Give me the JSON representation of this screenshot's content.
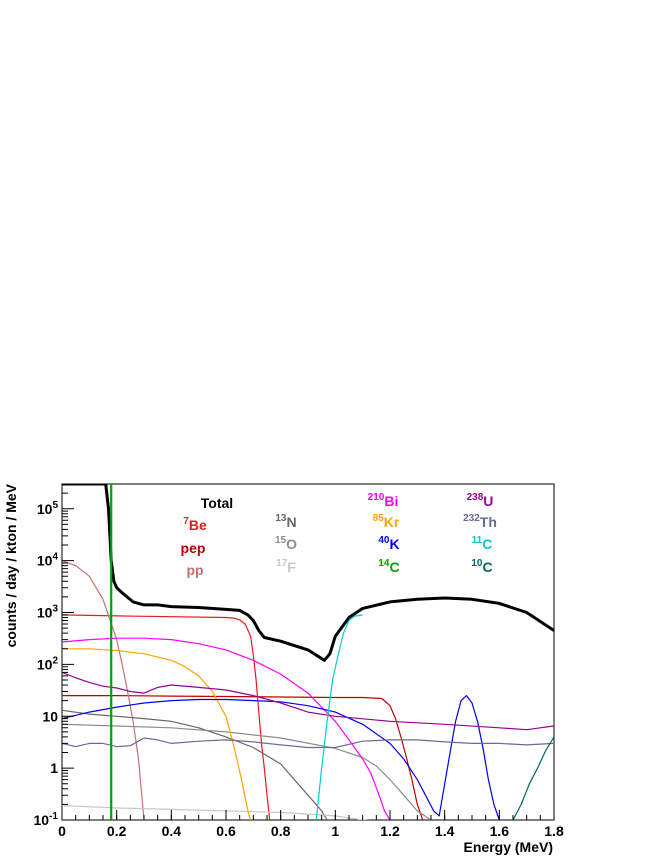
{
  "chart_data": {
    "type": "line",
    "title": "",
    "xlabel": "Energy (MeV)",
    "ylabel": "counts / day / kton / MeV",
    "xlim": [
      0,
      1.8
    ],
    "ylim": [
      0.1,
      300000
    ],
    "yscale": "log",
    "grid": false,
    "legend_placement": "top, four columns",
    "x_ticks": [
      "0",
      "0.2",
      "0.4",
      "0.6",
      "0.8",
      "1",
      "1.2",
      "1.4",
      "1.6",
      "1.8"
    ],
    "y_ticks": [
      {
        "base": "10",
        "exp": "-1"
      },
      {
        "base": "1",
        "exp": ""
      },
      {
        "base": "10",
        "exp": ""
      },
      {
        "base": "10",
        "exp": "2"
      },
      {
        "base": "10",
        "exp": "3"
      },
      {
        "base": "10",
        "exp": "4"
      },
      {
        "base": "10",
        "exp": "5"
      }
    ],
    "legend": [
      {
        "sup": "",
        "main": "Total",
        "color": "#000000"
      },
      {
        "sup": "7",
        "main": "Be",
        "color": "#e8191b"
      },
      {
        "sup": "",
        "main": "pep",
        "color": "#c00000"
      },
      {
        "sup": "",
        "main": "pp",
        "color": "#c87070"
      },
      {
        "sup": "13",
        "main": "N",
        "color": "#666666"
      },
      {
        "sup": "15",
        "main": "O",
        "color": "#8c8c8c"
      },
      {
        "sup": "17",
        "main": "F",
        "color": "#c8c8c8"
      },
      {
        "sup": "210",
        "main": "Bi",
        "color": "#ff00ff"
      },
      {
        "sup": "85",
        "main": "Kr",
        "color": "#ffa500"
      },
      {
        "sup": "40",
        "main": "K",
        "color": "#0000ee"
      },
      {
        "sup": "14",
        "main": "C",
        "color": "#00a000"
      },
      {
        "sup": "238",
        "main": "U",
        "color": "#990099"
      },
      {
        "sup": "232",
        "main": "Th",
        "color": "#6a6a9a"
      },
      {
        "sup": "11",
        "main": "C",
        "color": "#00cccc"
      },
      {
        "sup": "10",
        "main": "C",
        "color": "#006666"
      }
    ],
    "series": [
      {
        "id": "total",
        "color": "#000000",
        "width": 3,
        "x": [
          0,
          0.16,
          0.17,
          0.18,
          0.19,
          0.2,
          0.22,
          0.26,
          0.3,
          0.35,
          0.4,
          0.5,
          0.6,
          0.65,
          0.68,
          0.7,
          0.72,
          0.74,
          0.8,
          0.85,
          0.9,
          0.94,
          0.96,
          0.98,
          1.0,
          1.05,
          1.1,
          1.2,
          1.3,
          1.4,
          1.5,
          1.6,
          1.7,
          1.8
        ],
        "y": [
          300000,
          300000,
          100000,
          10000,
          4000,
          3000,
          2400,
          1600,
          1400,
          1400,
          1300,
          1250,
          1150,
          1100,
          900,
          700,
          450,
          330,
          280,
          230,
          190,
          140,
          120,
          160,
          350,
          800,
          1200,
          1600,
          1800,
          1900,
          1800,
          1500,
          1000,
          450
        ]
      },
      {
        "id": "Be7",
        "color": "#e8191b",
        "width": 1.2,
        "x": [
          0,
          0.2,
          0.4,
          0.6,
          0.63,
          0.65,
          0.67,
          0.69,
          0.7,
          0.71,
          0.72,
          0.73,
          0.74,
          0.75,
          0.76
        ],
        "y": [
          900,
          860,
          830,
          800,
          780,
          720,
          600,
          350,
          150,
          50,
          12,
          3,
          1,
          0.3,
          0.1
        ]
      },
      {
        "id": "pep",
        "color": "#c00000",
        "width": 1.2,
        "x": [
          0,
          0.2,
          0.4,
          0.6,
          0.8,
          1.0,
          1.1,
          1.17,
          1.2,
          1.22,
          1.24,
          1.26,
          1.28,
          1.3,
          1.32
        ],
        "y": [
          25,
          25,
          24.5,
          24,
          23.5,
          23,
          23,
          22,
          16,
          9,
          4,
          1.6,
          0.6,
          0.2,
          0.1
        ]
      },
      {
        "id": "pp",
        "color": "#c87070",
        "width": 1.2,
        "x": [
          0,
          0.05,
          0.1,
          0.15,
          0.2,
          0.22,
          0.24,
          0.26,
          0.28,
          0.3
        ],
        "y": [
          10000,
          8000,
          5000,
          1800,
          300,
          100,
          30,
          8,
          1.5,
          0.1
        ]
      },
      {
        "id": "N13",
        "color": "#666666",
        "width": 1.2,
        "x": [
          0,
          0.1,
          0.2,
          0.3,
          0.4,
          0.5,
          0.6,
          0.7,
          0.8,
          0.85,
          0.9,
          0.95,
          0.97
        ],
        "y": [
          13,
          11,
          10,
          9,
          8,
          6,
          4,
          2.5,
          1.2,
          0.6,
          0.3,
          0.15,
          0.1
        ]
      },
      {
        "id": "O15",
        "color": "#8c8c8c",
        "width": 1.2,
        "x": [
          0,
          0.2,
          0.4,
          0.6,
          0.8,
          1.0,
          1.1,
          1.15,
          1.2,
          1.25,
          1.3,
          1.35
        ],
        "y": [
          7,
          6.5,
          6,
          5,
          3.8,
          2.4,
          1.6,
          1.1,
          0.6,
          0.3,
          0.15,
          0.1
        ]
      },
      {
        "id": "F17",
        "color": "#c8c8c8",
        "width": 1.2,
        "x": [
          0,
          0.2,
          0.4,
          0.6,
          0.8,
          1.0,
          1.1,
          1.2
        ],
        "y": [
          0.19,
          0.17,
          0.16,
          0.15,
          0.14,
          0.12,
          0.1,
          0.09
        ]
      },
      {
        "id": "Bi210",
        "color": "#ff00ff",
        "width": 1.2,
        "x": [
          0,
          0.1,
          0.2,
          0.3,
          0.4,
          0.5,
          0.6,
          0.7,
          0.8,
          0.9,
          1.0,
          1.05,
          1.1,
          1.13,
          1.16,
          1.18,
          1.2
        ],
        "y": [
          270,
          300,
          320,
          320,
          300,
          250,
          190,
          120,
          65,
          28,
          8,
          3.5,
          1.5,
          0.8,
          0.3,
          0.15,
          0.1
        ]
      },
      {
        "id": "Kr85",
        "color": "#ffa500",
        "width": 1.2,
        "x": [
          0,
          0.1,
          0.2,
          0.3,
          0.4,
          0.45,
          0.5,
          0.55,
          0.6,
          0.62,
          0.64,
          0.66,
          0.68,
          0.69
        ],
        "y": [
          200,
          200,
          185,
          160,
          120,
          90,
          60,
          30,
          10,
          4,
          1.5,
          0.5,
          0.15,
          0.1
        ]
      },
      {
        "id": "K40",
        "color": "#0000ee",
        "width": 1.2,
        "x": [
          0,
          0.1,
          0.2,
          0.3,
          0.4,
          0.5,
          0.6,
          0.7,
          0.8,
          0.9,
          1.0,
          1.1,
          1.2,
          1.25,
          1.3,
          1.33,
          1.36,
          1.38,
          1.4,
          1.42,
          1.44,
          1.46,
          1.48,
          1.5,
          1.52,
          1.54,
          1.56,
          1.58,
          1.6
        ],
        "y": [
          9,
          12,
          15,
          18,
          20,
          21,
          21,
          20,
          19,
          16,
          12,
          7,
          3,
          1.5,
          0.6,
          0.3,
          0.15,
          0.12,
          0.5,
          2,
          8,
          20,
          25,
          18,
          8,
          2.5,
          0.6,
          0.2,
          0.1
        ]
      },
      {
        "id": "U238",
        "color": "#990099",
        "width": 1.2,
        "x": [
          0,
          0.05,
          0.1,
          0.15,
          0.2,
          0.25,
          0.3,
          0.35,
          0.4,
          0.5,
          0.6,
          0.7,
          0.8,
          0.9,
          1.0,
          1.2,
          1.4,
          1.6,
          1.7,
          1.75,
          1.8
        ],
        "y": [
          70,
          55,
          45,
          38,
          35,
          30,
          28,
          36,
          40,
          36,
          32,
          25,
          18,
          12,
          10,
          8,
          7,
          6,
          5.5,
          6,
          6.5
        ]
      },
      {
        "id": "Th232",
        "color": "#6a6a9a",
        "width": 1.2,
        "x": [
          0,
          0.05,
          0.1,
          0.15,
          0.2,
          0.25,
          0.3,
          0.35,
          0.4,
          0.5,
          0.6,
          0.7,
          0.8,
          0.9,
          1.0,
          1.1,
          1.2,
          1.3,
          1.4,
          1.5,
          1.6,
          1.7,
          1.8
        ],
        "y": [
          3,
          2.6,
          3,
          3,
          2.6,
          2.7,
          3.8,
          3.5,
          3,
          3.3,
          3.5,
          3.2,
          2.8,
          2.5,
          2.5,
          3.3,
          3.5,
          3.5,
          3.2,
          3,
          3,
          2.8,
          3
        ]
      },
      {
        "id": "C11",
        "color": "#00cccc",
        "width": 1.2,
        "x": [
          0.93,
          0.95,
          0.97,
          0.99,
          1.01,
          1.03,
          1.05,
          1.07,
          1.1
        ],
        "y": [
          0.1,
          1,
          8,
          50,
          150,
          400,
          700,
          850,
          900
        ]
      },
      {
        "id": "C14",
        "color": "#00a000",
        "width": 2.2,
        "x": [
          0.18,
          0.18
        ],
        "y": [
          0.1,
          300000
        ]
      },
      {
        "id": "C10",
        "color": "#006666",
        "width": 1.2,
        "x": [
          1.65,
          1.68,
          1.71,
          1.74,
          1.77,
          1.8
        ],
        "y": [
          0.1,
          0.2,
          0.5,
          1,
          2.2,
          4
        ]
      }
    ]
  }
}
